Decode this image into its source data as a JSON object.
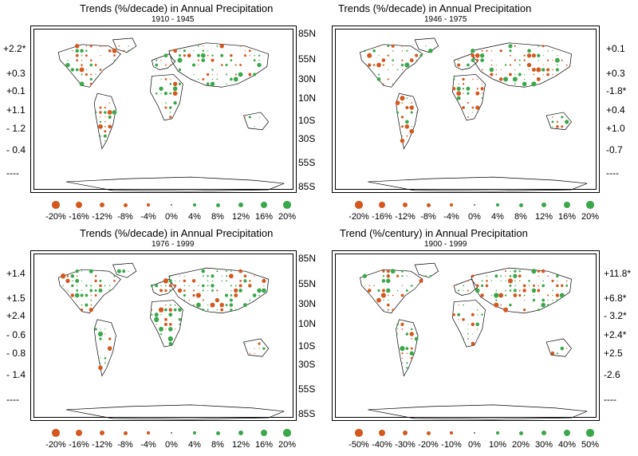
{
  "panels": [
    {
      "title": "Trends (%/decade) in Annual Precipitation",
      "period": "1910 - 1945",
      "trends": [
        "+2.2*",
        "+0.3",
        "+0.1",
        "+1.1",
        "- 1.2",
        "- 0.4",
        "----"
      ],
      "legend": [
        "-20%",
        "-16%",
        "-12%",
        "-8%",
        "-4%",
        "0%",
        "4%",
        "8%",
        "12%",
        "16%",
        "20%"
      ]
    },
    {
      "title": "Trends (%/decade) in Annual Precipitation",
      "period": "1946 - 1975",
      "trends": [
        "+0.1",
        "+0.3",
        "-1.8*",
        "+0.4",
        "+1.0",
        "-0.7",
        "----"
      ],
      "legend": [
        "-20%",
        "-16%",
        "-12%",
        "-8%",
        "-4%",
        "0%",
        "4%",
        "8%",
        "12%",
        "16%",
        "20%"
      ]
    },
    {
      "title": "Trends (%/decade) in Annual Precipitation",
      "period": "1976 - 1999",
      "trends": [
        "+1.4",
        "+1.5",
        "+2.4",
        "- 0.6",
        "- 0.8",
        "- 1.4",
        "----"
      ],
      "legend": [
        "-20%",
        "-16%",
        "-12%",
        "-8%",
        "-4%",
        "0%",
        "4%",
        "8%",
        "12%",
        "16%",
        "20%"
      ]
    },
    {
      "title": "Trend (%/century) in Annual Precipitation",
      "period": "1900 - 1999",
      "trends": [
        "+11.8*",
        "+6.8*",
        "- 3.2*",
        "+2.4*",
        "+2.5",
        "-2.6",
        "----"
      ],
      "legend": [
        "-50%",
        "-40%",
        "-30%",
        "-20%",
        "-10%",
        "0%",
        "10%",
        "20%",
        "30%",
        "40%",
        "50%"
      ]
    }
  ],
  "latitude_labels": [
    "85N",
    "55N",
    "30N",
    "10N",
    "10S",
    "30S",
    "55S",
    "85S"
  ],
  "colors": {
    "decrease": "#d4581e",
    "increase": "#3aa84a",
    "land": "#000000"
  }
}
